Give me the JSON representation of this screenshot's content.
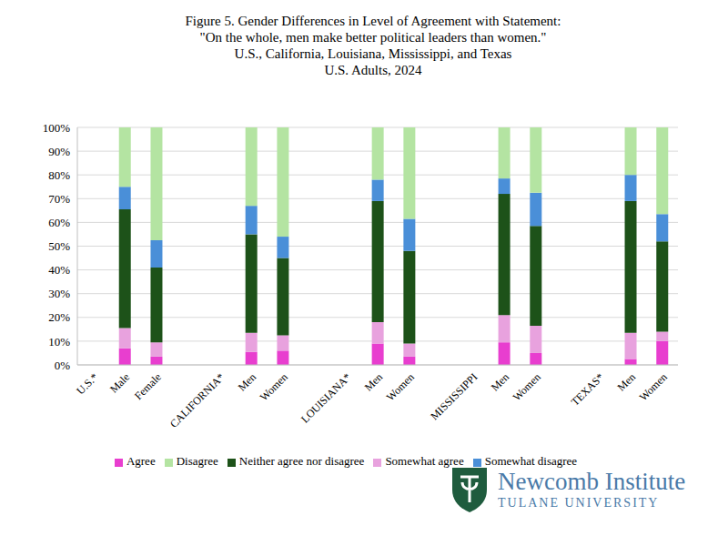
{
  "chart_data": {
    "type": "bar",
    "stacked": true,
    "title": [
      "Figure 5. Gender Differences in Level of Agreement with Statement:",
      "\"On the whole, men make better political leaders than women.\"",
      "U.S., California, Louisiana, Mississippi, and Texas",
      "U.S. Adults, 2024"
    ],
    "categories": [
      "U.S.*",
      "Male",
      "Female",
      null,
      "CALIFORNIA*",
      "Men",
      "Women",
      null,
      "LOUISIANA*",
      "Men",
      "Women",
      null,
      "MISSISSIPPI",
      "Men",
      "Women",
      null,
      "TEXAS*",
      "Men",
      "Women"
    ],
    "series": [
      {
        "name": "Agree",
        "color": "#e83ecf",
        "values": [
          null,
          7,
          3.5,
          null,
          null,
          5.5,
          6,
          null,
          null,
          9,
          3.5,
          null,
          null,
          9.5,
          5,
          null,
          null,
          2.5,
          10
        ]
      },
      {
        "name": "Somewhat agree",
        "color": "#e8a2de",
        "values": [
          null,
          8.5,
          6,
          null,
          null,
          8,
          6.5,
          null,
          null,
          9,
          5.5,
          null,
          null,
          11.5,
          11.5,
          null,
          null,
          11,
          4
        ]
      },
      {
        "name": "Neither agree nor disagree",
        "color": "#1d5219",
        "values": [
          null,
          50,
          31.5,
          null,
          null,
          41.5,
          32.5,
          null,
          null,
          51,
          39,
          null,
          null,
          51,
          42,
          null,
          null,
          55.5,
          38
        ]
      },
      {
        "name": "Somewhat disagree",
        "color": "#4a8fd8",
        "values": [
          null,
          9.5,
          11.5,
          null,
          null,
          12,
          9,
          null,
          null,
          9,
          13.5,
          null,
          null,
          6.5,
          14,
          null,
          null,
          11,
          11.5
        ]
      },
      {
        "name": "Disagree",
        "color": "#b4e4a2",
        "values": [
          null,
          25,
          47.5,
          null,
          null,
          33,
          46,
          null,
          null,
          22,
          38.5,
          null,
          null,
          21.5,
          27.5,
          null,
          null,
          20,
          36.5
        ]
      }
    ],
    "ylim": [
      0,
      100
    ],
    "yticks": [
      {
        "value": 0,
        "label": "0%"
      },
      {
        "value": 10,
        "label": "10%"
      },
      {
        "value": 20,
        "label": "20%"
      },
      {
        "value": 30,
        "label": "30%"
      },
      {
        "value": 40,
        "label": "40%"
      },
      {
        "value": 50,
        "label": "50%"
      },
      {
        "value": 60,
        "label": "60%"
      },
      {
        "value": 70,
        "label": "70%"
      },
      {
        "value": 80,
        "label": "80%"
      },
      {
        "value": 90,
        "label": "90%"
      },
      {
        "value": 100,
        "label": "100%"
      }
    ],
    "grid": true,
    "legend": "bottom"
  },
  "logo": {
    "name": "Newcomb Institute",
    "subname": "TULANE UNIVERSITY"
  }
}
